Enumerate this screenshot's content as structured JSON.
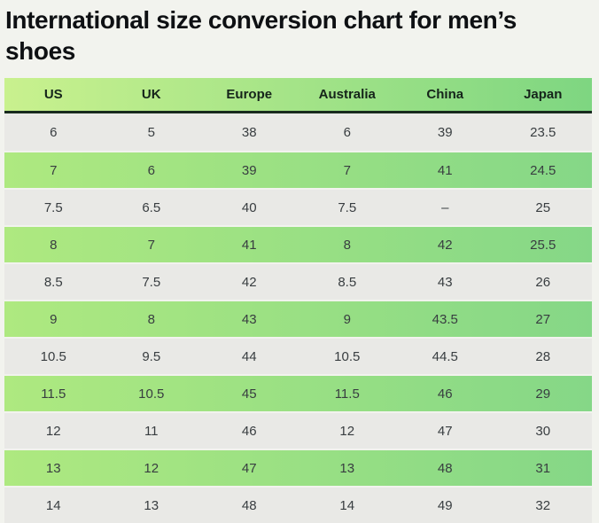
{
  "page": {
    "background": "#f2f3ee"
  },
  "chart_data": {
    "type": "table",
    "title": "International size conversion chart for men’s shoes",
    "columns": [
      "US",
      "UK",
      "Europe",
      "Australia",
      "China",
      "Japan"
    ],
    "rows": [
      [
        "6",
        "5",
        "38",
        "6",
        "39",
        "23.5"
      ],
      [
        "7",
        "6",
        "39",
        "7",
        "41",
        "24.5"
      ],
      [
        "7.5",
        "6.5",
        "40",
        "7.5",
        "–",
        "25"
      ],
      [
        "8",
        "7",
        "41",
        "8",
        "42",
        "25.5"
      ],
      [
        "8.5",
        "7.5",
        "42",
        "8.5",
        "43",
        "26"
      ],
      [
        "9",
        "8",
        "43",
        "9",
        "43.5",
        "27"
      ],
      [
        "10.5",
        "9.5",
        "44",
        "10.5",
        "44.5",
        "28"
      ],
      [
        "11.5",
        "10.5",
        "45",
        "11.5",
        "46",
        "29"
      ],
      [
        "12",
        "11",
        "46",
        "12",
        "47",
        "30"
      ],
      [
        "13",
        "12",
        "47",
        "13",
        "48",
        "31"
      ],
      [
        "14",
        "13",
        "48",
        "14",
        "49",
        "32"
      ]
    ]
  },
  "colors": {
    "page_background": "#f2f3ee",
    "title_text": "#0e1013",
    "header_gradient_start": "#c9f18e",
    "header_gradient_end": "#7ed681",
    "header_border": "#182a1e",
    "header_text": "#15241a",
    "row_green_gradient_start": "#aee980",
    "row_green_gradient_end": "#85d787",
    "row_gray": "#e9e9e6",
    "cell_text": "#383d40"
  }
}
